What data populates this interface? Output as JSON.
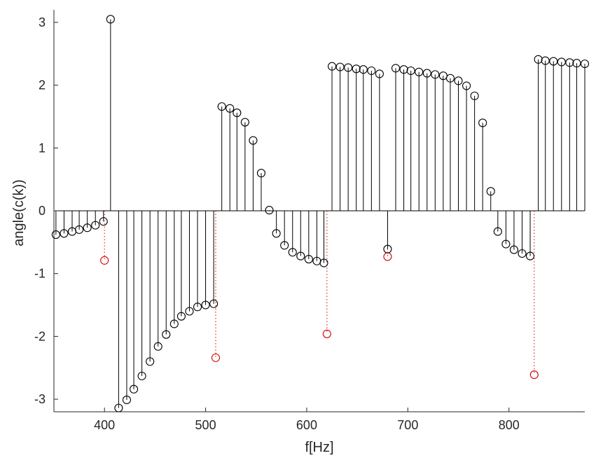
{
  "chart_data": {
    "type": "stem",
    "title": "",
    "xlabel": "f[Hz]",
    "ylabel": "angle(c(k))",
    "xlim": [
      350,
      875
    ],
    "ylim": [
      -3.2,
      3.2
    ],
    "xticks": [
      400,
      500,
      600,
      700,
      800
    ],
    "yticks": [
      -3,
      -2,
      -1,
      0,
      1,
      2,
      3
    ],
    "grid": false,
    "legend": "none",
    "series": [
      {
        "color": "#000000",
        "marker": "open-circle",
        "x": [
          352,
          360,
          368,
          375,
          383,
          391,
          399,
          406,
          414,
          422,
          429,
          437,
          445,
          453,
          461,
          469,
          476,
          484,
          492,
          500,
          508,
          516,
          524,
          531,
          539,
          547,
          555,
          563,
          570,
          578,
          586,
          594,
          602,
          610,
          617,
          625,
          633,
          641,
          649,
          656,
          664,
          672,
          680,
          688,
          696,
          703,
          711,
          719,
          727,
          735,
          742,
          750,
          758,
          766,
          774,
          782,
          789,
          797,
          805,
          813,
          821,
          829,
          836,
          844,
          852,
          860,
          867,
          875
        ],
        "y": [
          -0.38,
          -0.36,
          -0.33,
          -0.3,
          -0.27,
          -0.23,
          -0.17,
          3.05,
          -3.14,
          -3.01,
          -2.84,
          -2.63,
          -2.4,
          -2.16,
          -1.97,
          -1.8,
          -1.68,
          -1.6,
          -1.53,
          -1.5,
          -1.48,
          1.66,
          1.63,
          1.56,
          1.41,
          1.12,
          0.6,
          0.01,
          -0.36,
          -0.55,
          -0.66,
          -0.72,
          -0.77,
          -0.8,
          -0.83,
          2.3,
          2.29,
          2.28,
          2.26,
          2.25,
          2.23,
          2.18,
          -0.61,
          2.27,
          2.25,
          2.23,
          2.21,
          2.19,
          2.17,
          2.15,
          2.11,
          2.07,
          1.99,
          1.83,
          1.4,
          0.31,
          -0.33,
          -0.53,
          -0.62,
          -0.68,
          -0.72,
          2.41,
          2.39,
          2.38,
          2.37,
          2.36,
          2.35,
          2.34
        ]
      },
      {
        "color": "#d40000",
        "marker": "open-circle",
        "line_style": "dotted",
        "x": [
          400,
          510,
          620,
          680,
          825
        ],
        "y": [
          -0.79,
          -2.34,
          -1.96,
          -0.73,
          -2.61
        ]
      }
    ]
  }
}
